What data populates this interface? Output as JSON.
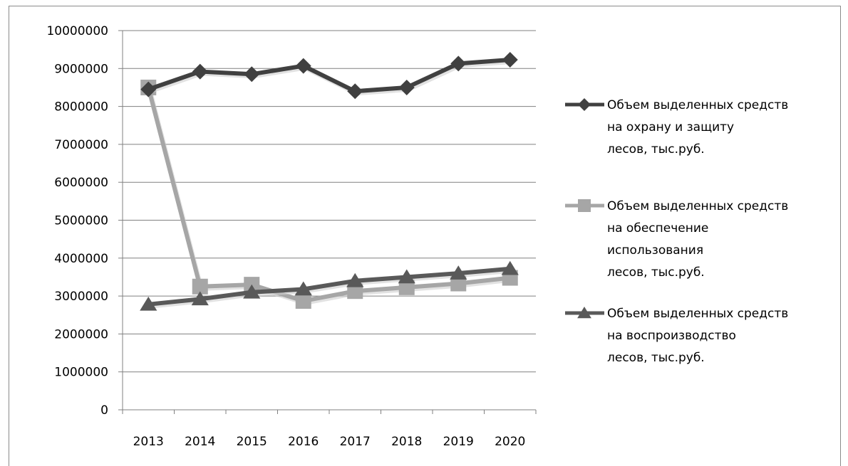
{
  "chart_data": {
    "type": "line",
    "title": "",
    "xlabel": "",
    "ylabel": "",
    "categories": [
      "2013",
      "2014",
      "2015",
      "2016",
      "2017",
      "2018",
      "2019",
      "2020"
    ],
    "ylim": [
      0,
      10000000
    ],
    "yticks": [
      "0",
      "1000000",
      "2000000",
      "3000000",
      "4000000",
      "5000000",
      "6000000",
      "7000000",
      "8000000",
      "9000000",
      "10000000"
    ],
    "grid": true,
    "legend_position": "right",
    "series": [
      {
        "name": "Объем выделенных средств на охрану и защиту лесов, тыс.руб.",
        "legend_lines": [
          "Объем выделенных средств",
          "на охрану и защиту",
          "лесов, тыс.руб."
        ],
        "marker": "diamond",
        "color": "#404040",
        "values": [
          8450000,
          8920000,
          8850000,
          9070000,
          8400000,
          8500000,
          9130000,
          9230000
        ]
      },
      {
        "name": "Объем выделенных средств на обеспечение использования лесов, тыс.руб.",
        "legend_lines": [
          "Объем выделенных средств",
          "на обеспечение",
          "использования",
          "лесов, тыс.руб."
        ],
        "marker": "square",
        "color": "#a6a6a6",
        "values": [
          8500000,
          3250000,
          3300000,
          2870000,
          3130000,
          3230000,
          3330000,
          3480000
        ]
      },
      {
        "name": "Объем выделенных средств на воспроизводство лесов, тыс.руб.",
        "legend_lines": [
          "Объем выделенных средств",
          "на воспроизводство",
          "лесов, тыс.руб."
        ],
        "marker": "triangle",
        "color": "#595959",
        "values": [
          2780000,
          2920000,
          3100000,
          3180000,
          3400000,
          3500000,
          3600000,
          3720000
        ]
      }
    ]
  }
}
